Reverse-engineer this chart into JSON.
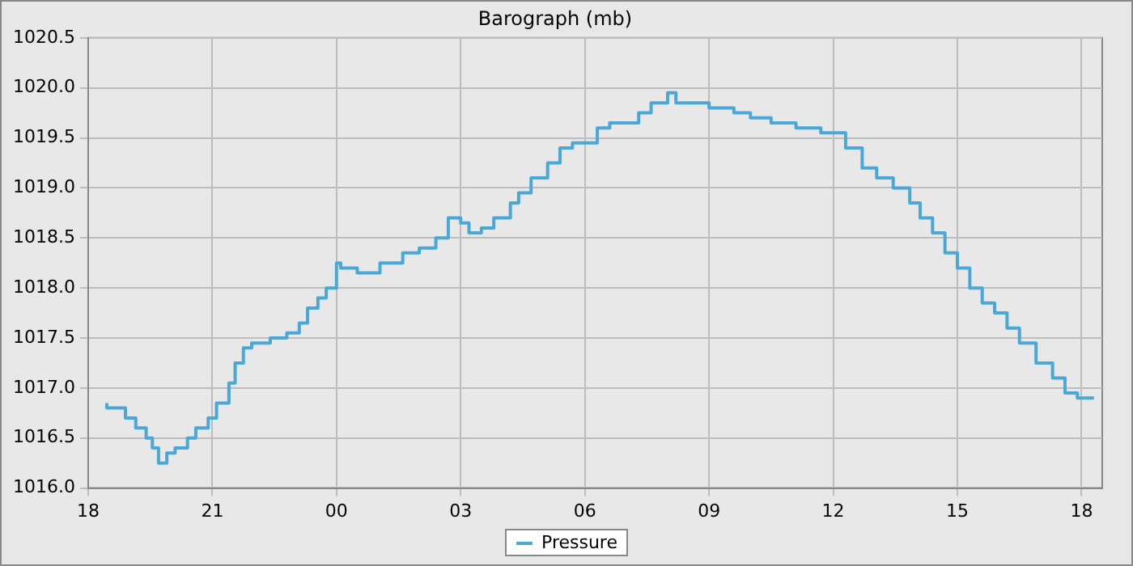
{
  "chart_data": {
    "type": "step",
    "title": "Barograph (mb)",
    "x": [
      18.45,
      18.9,
      19.15,
      19.4,
      19.55,
      19.7,
      19.9,
      20.1,
      20.4,
      20.6,
      20.9,
      21.1,
      21.4,
      21.55,
      21.75,
      21.95,
      22.4,
      22.8,
      23.1,
      23.3,
      23.55,
      23.75,
      24.0,
      24.1,
      24.5,
      25.05,
      25.6,
      26.0,
      26.4,
      26.7,
      27.0,
      27.2,
      27.5,
      27.8,
      28.2,
      28.4,
      28.7,
      29.1,
      29.4,
      29.7,
      30.3,
      30.6,
      30.9,
      31.3,
      31.6,
      32.0,
      32.2,
      32.6,
      33.0,
      33.6,
      34.0,
      34.5,
      35.1,
      35.7,
      36.0,
      36.3,
      36.7,
      37.05,
      37.45,
      37.85,
      38.1,
      38.4,
      38.7,
      39.0,
      39.3,
      39.6,
      39.9,
      40.2,
      40.5,
      40.9,
      41.3,
      41.6,
      41.9,
      42.3
    ],
    "series": [
      {
        "name": "Pressure",
        "color": "#4aa8d8",
        "values": [
          1016.85,
          1016.8,
          1016.7,
          1016.6,
          1016.5,
          1016.4,
          1016.25,
          1016.35,
          1016.4,
          1016.5,
          1016.6,
          1016.7,
          1016.85,
          1017.05,
          1017.25,
          1017.4,
          1017.45,
          1017.5,
          1017.55,
          1017.65,
          1017.8,
          1017.9,
          1018.0,
          1018.25,
          1018.2,
          1018.15,
          1018.25,
          1018.35,
          1018.4,
          1018.5,
          1018.7,
          1018.65,
          1018.55,
          1018.6,
          1018.7,
          1018.85,
          1018.95,
          1019.1,
          1019.25,
          1019.4,
          1019.45,
          1019.6,
          1019.65,
          1019.65,
          1019.75,
          1019.85,
          1019.95,
          1019.85,
          1019.85,
          1019.8,
          1019.75,
          1019.7,
          1019.65,
          1019.6,
          1019.55,
          1019.55,
          1019.4,
          1019.2,
          1019.1,
          1019.0,
          1018.85,
          1018.7,
          1018.55,
          1018.35,
          1018.2,
          1018.0,
          1017.85,
          1017.75,
          1017.6,
          1017.45,
          1017.25,
          1017.1,
          1016.95,
          1016.9
        ]
      }
    ],
    "xlim": [
      18,
      42.5
    ],
    "xticks": [
      {
        "value": 18,
        "label": "18"
      },
      {
        "value": 21,
        "label": "21"
      },
      {
        "value": 24,
        "label": "00"
      },
      {
        "value": 27,
        "label": "03"
      },
      {
        "value": 30,
        "label": "06"
      },
      {
        "value": 33,
        "label": "09"
      },
      {
        "value": 36,
        "label": "12"
      },
      {
        "value": 39,
        "label": "15"
      },
      {
        "value": 42,
        "label": "18"
      }
    ],
    "ylim": [
      1016,
      1020.5
    ],
    "yticks": [
      {
        "value": 1016,
        "label": "1016.0"
      },
      {
        "value": 1016.5,
        "label": "1016.5"
      },
      {
        "value": 1017,
        "label": "1017.0"
      },
      {
        "value": 1017.5,
        "label": "1017.5"
      },
      {
        "value": 1018,
        "label": "1018.0"
      },
      {
        "value": 1018.5,
        "label": "1018.5"
      },
      {
        "value": 1019,
        "label": "1019.0"
      },
      {
        "value": 1019.5,
        "label": "1019.5"
      },
      {
        "value": 1020,
        "label": "1020.0"
      },
      {
        "value": 1020.5,
        "label": "1020.5"
      }
    ],
    "grid": true,
    "legend": "bottom",
    "marker": "none",
    "line_style": "solid"
  }
}
